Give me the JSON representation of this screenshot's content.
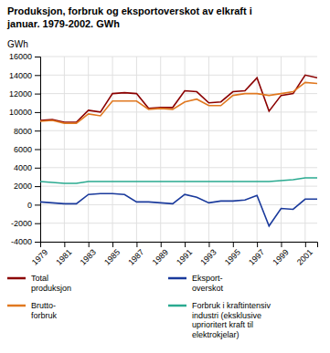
{
  "chart_data": {
    "type": "line",
    "title": "Produksjon, forbruk og eksportoverskot av elkraft i\njanuar. 1979-2002. GWh",
    "ylabel": "GWh",
    "x": [
      1979,
      1980,
      1981,
      1982,
      1983,
      1984,
      1985,
      1986,
      1987,
      1988,
      1989,
      1990,
      1991,
      1992,
      1993,
      1994,
      1995,
      1996,
      1997,
      1998,
      1999,
      2000,
      2001,
      2002
    ],
    "series": [
      {
        "name": "Total\nproduksjon",
        "color": "#8B0000",
        "values": [
          9100,
          9200,
          8900,
          8900,
          10200,
          10000,
          12000,
          12100,
          12000,
          10400,
          10500,
          10500,
          12300,
          12200,
          11000,
          11100,
          12200,
          12300,
          13700,
          10100,
          11800,
          12000,
          14000,
          13700
        ]
      },
      {
        "name": "Eksport-\noverskot",
        "color": "#1a3a9c",
        "values": [
          300,
          200,
          100,
          100,
          1100,
          1200,
          1200,
          1100,
          300,
          300,
          200,
          100,
          1100,
          800,
          200,
          400,
          400,
          500,
          1000,
          -2300,
          -400,
          -500,
          600,
          600
        ]
      },
      {
        "name": "Brutto-\nforbruk",
        "color": "#e07820",
        "values": [
          9000,
          9100,
          8800,
          8800,
          9800,
          9600,
          11200,
          11200,
          11200,
          10300,
          10400,
          10300,
          11100,
          11400,
          10700,
          10700,
          11800,
          12000,
          12000,
          11800,
          12000,
          12200,
          13200,
          13100
        ]
      },
      {
        "name": "Forbruk i kraftintensiv\nindustri (eksklusive\nuprioritert kraft til\nelektrokjelar)",
        "color": "#2aaa90",
        "values": [
          2500,
          2400,
          2300,
          2300,
          2500,
          2500,
          2500,
          2500,
          2500,
          2500,
          2500,
          2500,
          2500,
          2500,
          2500,
          2500,
          2500,
          2500,
          2500,
          2500,
          2600,
          2700,
          2900,
          2900
        ]
      }
    ],
    "xlim": [
      1979,
      2002
    ],
    "xticks": [
      1979,
      1981,
      1983,
      1985,
      1987,
      1989,
      1991,
      1993,
      1995,
      1997,
      1999,
      2001
    ],
    "ylim": [
      -4000,
      16000
    ],
    "yticks": [
      -4000,
      -2000,
      0,
      2000,
      4000,
      6000,
      8000,
      10000,
      12000,
      14000,
      16000
    ],
    "grid": true,
    "legend": "bottom"
  }
}
